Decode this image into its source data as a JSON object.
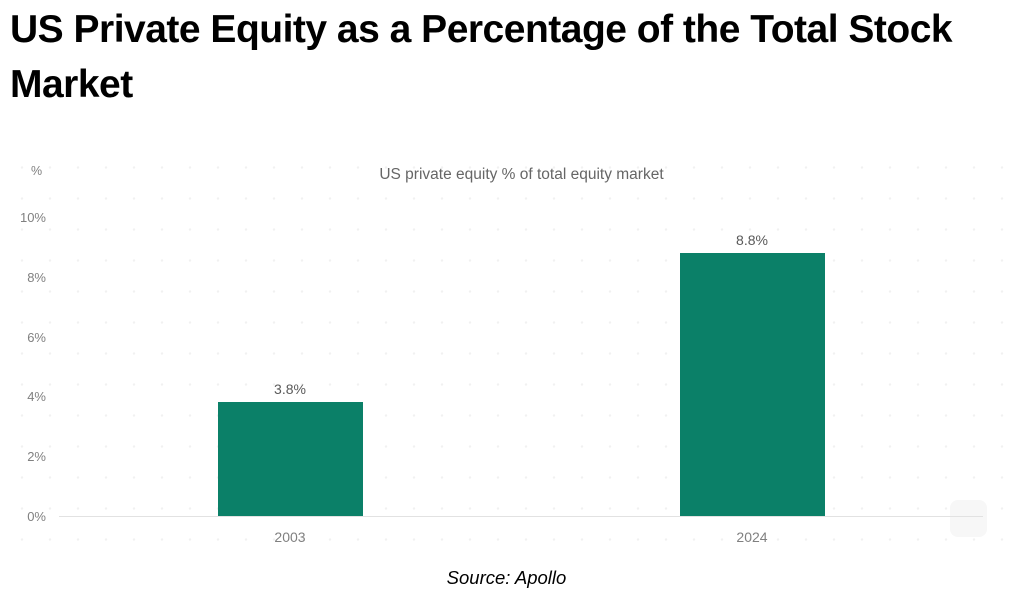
{
  "page": {
    "title": "US Private Equity as a Percentage of the Total Stock Market",
    "source": "Source: Apollo"
  },
  "chart_data": {
    "type": "bar",
    "title": "US private equity % of total equity market",
    "unit_label": "%",
    "categories": [
      "2003",
      "2024"
    ],
    "values": [
      3.8,
      8.8
    ],
    "value_labels": [
      "3.8%",
      "8.8%"
    ],
    "y_ticks": [
      {
        "value": 10,
        "label": "10%"
      },
      {
        "value": 8,
        "label": "8%"
      },
      {
        "value": 6,
        "label": "6%"
      },
      {
        "value": 4,
        "label": "4%"
      },
      {
        "value": 2,
        "label": "2%"
      },
      {
        "value": 0,
        "label": "0%"
      }
    ],
    "ylim": [
      0,
      10
    ],
    "grid": false,
    "legend": false,
    "colors": {
      "bar": "#0b8068",
      "value_label": "#595959",
      "tick_label": "#808080",
      "subtitle": "#666666",
      "axis_line": "#e2e2e2"
    }
  }
}
